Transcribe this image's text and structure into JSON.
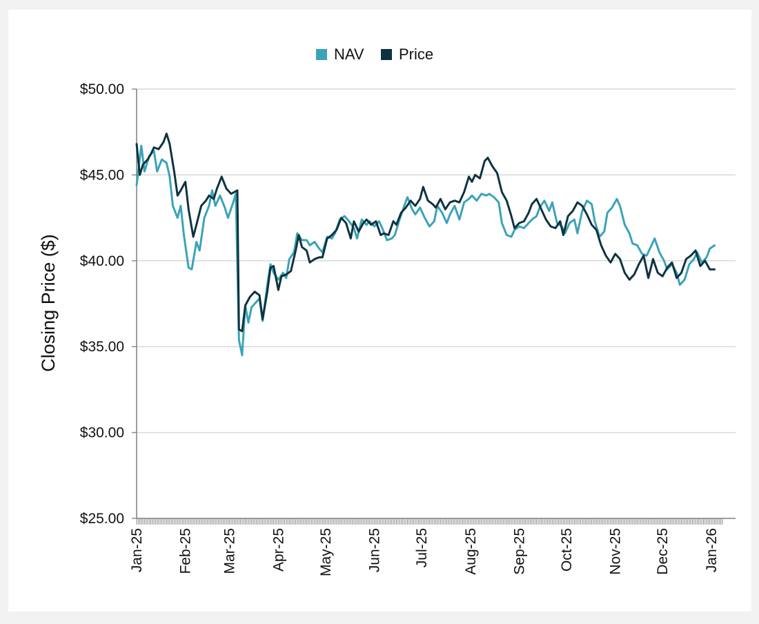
{
  "chart_data": {
    "type": "line",
    "title": "",
    "xlabel": "",
    "ylabel": "Closing Price ($)",
    "ylim": [
      25,
      50
    ],
    "yticks": [
      50,
      45,
      40,
      35,
      30,
      25
    ],
    "ytick_labels": [
      "$50.00",
      "$45.00",
      "$40.00",
      "$35.00",
      "$30.00",
      "$25.00"
    ],
    "grid": true,
    "legend_position": "top-center",
    "x_range_days": [
      0,
      376
    ],
    "x_ticks": [
      {
        "label": "Jan-25",
        "day": 0
      },
      {
        "label": "Feb-25",
        "day": 31
      },
      {
        "label": "Mar-25",
        "day": 59
      },
      {
        "label": "Apr-25",
        "day": 90
      },
      {
        "label": "May-25",
        "day": 120
      },
      {
        "label": "Jun-25",
        "day": 151
      },
      {
        "label": "Jul-25",
        "day": 181
      },
      {
        "label": "Aug-25",
        "day": 212
      },
      {
        "label": "Sep-25",
        "day": 243
      },
      {
        "label": "Oct-25",
        "day": 273
      },
      {
        "label": "Nov-25",
        "day": 304
      },
      {
        "label": "Dec-25",
        "day": 334
      },
      {
        "label": "Jan-26",
        "day": 365
      }
    ],
    "series": [
      {
        "name": "NAV",
        "color": "#3aa3b8",
        "points": [
          [
            0,
            44.4
          ],
          [
            3,
            46.7
          ],
          [
            5,
            45.2
          ],
          [
            8,
            46.1
          ],
          [
            11,
            46.4
          ],
          [
            13,
            45.2
          ],
          [
            16,
            45.9
          ],
          [
            19,
            45.7
          ],
          [
            21,
            44.9
          ],
          [
            23,
            43.2
          ],
          [
            26,
            42.5
          ],
          [
            28,
            43.2
          ],
          [
            30,
            41.5
          ],
          [
            33,
            39.6
          ],
          [
            35,
            39.5
          ],
          [
            38,
            41.1
          ],
          [
            40,
            40.6
          ],
          [
            43,
            42.5
          ],
          [
            46,
            43.2
          ],
          [
            48,
            44.1
          ],
          [
            50,
            43.2
          ],
          [
            53,
            43.8
          ],
          [
            56,
            43.1
          ],
          [
            58,
            42.5
          ],
          [
            61,
            43.3
          ],
          [
            63,
            43.9
          ],
          [
            65,
            35.4
          ],
          [
            67,
            34.5
          ],
          [
            69,
            37.4
          ],
          [
            71,
            36.4
          ],
          [
            73,
            37.3
          ],
          [
            76,
            37.6
          ],
          [
            78,
            37.8
          ],
          [
            80,
            36.5
          ],
          [
            83,
            38.6
          ],
          [
            85,
            39.8
          ],
          [
            87,
            39.3
          ],
          [
            90,
            38.9
          ],
          [
            93,
            39.3
          ],
          [
            95,
            39.0
          ],
          [
            97,
            40.1
          ],
          [
            100,
            40.5
          ],
          [
            102,
            41.6
          ],
          [
            105,
            41.2
          ],
          [
            108,
            41.2
          ],
          [
            110,
            40.9
          ],
          [
            113,
            41.1
          ],
          [
            116,
            40.7
          ],
          [
            118,
            40.5
          ],
          [
            121,
            41.4
          ],
          [
            124,
            41.3
          ],
          [
            126,
            41.6
          ],
          [
            129,
            42.4
          ],
          [
            132,
            42.6
          ],
          [
            135,
            42.3
          ],
          [
            138,
            41.9
          ],
          [
            140,
            41.3
          ],
          [
            143,
            42.4
          ],
          [
            146,
            42.1
          ],
          [
            148,
            42.3
          ],
          [
            151,
            42.0
          ],
          [
            154,
            42.3
          ],
          [
            156,
            41.9
          ],
          [
            159,
            41.2
          ],
          [
            162,
            41.3
          ],
          [
            164,
            41.5
          ],
          [
            167,
            42.4
          ],
          [
            170,
            43.2
          ],
          [
            172,
            43.7
          ],
          [
            175,
            43.0
          ],
          [
            177,
            42.7
          ],
          [
            180,
            43.1
          ],
          [
            183,
            42.5
          ],
          [
            186,
            42.0
          ],
          [
            189,
            42.3
          ],
          [
            191,
            43.2
          ],
          [
            194,
            42.8
          ],
          [
            197,
            42.2
          ],
          [
            199,
            42.7
          ],
          [
            202,
            43.2
          ],
          [
            205,
            42.4
          ],
          [
            208,
            43.4
          ],
          [
            211,
            43.6
          ],
          [
            213,
            43.8
          ],
          [
            216,
            43.5
          ],
          [
            219,
            43.9
          ],
          [
            222,
            43.8
          ],
          [
            224,
            43.9
          ],
          [
            227,
            43.7
          ],
          [
            230,
            43.4
          ],
          [
            232,
            42.2
          ],
          [
            235,
            41.5
          ],
          [
            238,
            41.4
          ],
          [
            240,
            41.8
          ],
          [
            243,
            42.0
          ],
          [
            246,
            41.9
          ],
          [
            248,
            42.1
          ],
          [
            251,
            42.4
          ],
          [
            254,
            42.6
          ],
          [
            256,
            43.1
          ],
          [
            259,
            43.5
          ],
          [
            262,
            42.9
          ],
          [
            264,
            43.4
          ],
          [
            267,
            42.2
          ],
          [
            270,
            42.0
          ],
          [
            272,
            41.6
          ],
          [
            275,
            42.2
          ],
          [
            278,
            42.4
          ],
          [
            280,
            41.6
          ],
          [
            283,
            42.9
          ],
          [
            286,
            43.5
          ],
          [
            289,
            43.3
          ],
          [
            291,
            42.3
          ],
          [
            294,
            41.4
          ],
          [
            297,
            41.7
          ],
          [
            299,
            42.8
          ],
          [
            302,
            43.1
          ],
          [
            305,
            43.6
          ],
          [
            307,
            43.2
          ],
          [
            310,
            42.1
          ],
          [
            313,
            41.6
          ],
          [
            315,
            41.0
          ],
          [
            318,
            40.9
          ],
          [
            321,
            40.4
          ],
          [
            324,
            40.3
          ],
          [
            327,
            40.9
          ],
          [
            329,
            41.3
          ],
          [
            332,
            40.5
          ],
          [
            335,
            40.0
          ],
          [
            337,
            39.5
          ],
          [
            340,
            39.8
          ],
          [
            343,
            39.3
          ],
          [
            345,
            38.6
          ],
          [
            348,
            38.9
          ],
          [
            351,
            39.8
          ],
          [
            354,
            40.1
          ],
          [
            356,
            40.5
          ],
          [
            359,
            39.9
          ],
          [
            362,
            40.2
          ],
          [
            364,
            40.7
          ],
          [
            367,
            40.9
          ]
        ]
      },
      {
        "name": "Price",
        "color": "#0d3340",
        "points": [
          [
            0,
            46.8
          ],
          [
            2,
            45.0
          ],
          [
            4,
            45.6
          ],
          [
            7,
            45.9
          ],
          [
            9,
            46.2
          ],
          [
            11,
            46.6
          ],
          [
            14,
            46.5
          ],
          [
            17,
            46.9
          ],
          [
            19,
            47.4
          ],
          [
            21,
            46.8
          ],
          [
            24,
            45.1
          ],
          [
            26,
            43.8
          ],
          [
            28,
            44.1
          ],
          [
            31,
            44.6
          ],
          [
            33,
            43.0
          ],
          [
            36,
            41.4
          ],
          [
            38,
            42.1
          ],
          [
            41,
            43.2
          ],
          [
            44,
            43.5
          ],
          [
            46,
            43.8
          ],
          [
            49,
            43.6
          ],
          [
            51,
            44.2
          ],
          [
            54,
            44.9
          ],
          [
            57,
            44.2
          ],
          [
            60,
            43.9
          ],
          [
            62,
            44.0
          ],
          [
            64,
            44.1
          ],
          [
            65,
            36.0
          ],
          [
            67,
            35.9
          ],
          [
            69,
            37.4
          ],
          [
            72,
            37.9
          ],
          [
            75,
            38.2
          ],
          [
            78,
            38.0
          ],
          [
            80,
            36.6
          ],
          [
            83,
            38.2
          ],
          [
            85,
            39.6
          ],
          [
            87,
            39.7
          ],
          [
            90,
            38.3
          ],
          [
            92,
            39.1
          ],
          [
            95,
            39.2
          ],
          [
            98,
            39.4
          ],
          [
            101,
            40.6
          ],
          [
            103,
            41.5
          ],
          [
            105,
            40.8
          ],
          [
            108,
            40.6
          ],
          [
            110,
            39.9
          ],
          [
            113,
            40.1
          ],
          [
            116,
            40.2
          ],
          [
            118,
            40.2
          ],
          [
            121,
            41.3
          ],
          [
            124,
            41.5
          ],
          [
            127,
            41.8
          ],
          [
            130,
            42.5
          ],
          [
            133,
            42.2
          ],
          [
            136,
            41.3
          ],
          [
            138,
            42.3
          ],
          [
            141,
            41.7
          ],
          [
            144,
            42.2
          ],
          [
            146,
            42.4
          ],
          [
            149,
            42.1
          ],
          [
            152,
            42.3
          ],
          [
            155,
            41.5
          ],
          [
            157,
            41.6
          ],
          [
            160,
            41.5
          ],
          [
            163,
            42.3
          ],
          [
            165,
            42.1
          ],
          [
            168,
            42.8
          ],
          [
            171,
            43.1
          ],
          [
            174,
            43.5
          ],
          [
            177,
            43.2
          ],
          [
            180,
            43.6
          ],
          [
            182,
            44.3
          ],
          [
            185,
            43.5
          ],
          [
            188,
            43.3
          ],
          [
            190,
            43.1
          ],
          [
            193,
            43.6
          ],
          [
            196,
            43.0
          ],
          [
            199,
            43.4
          ],
          [
            202,
            43.5
          ],
          [
            205,
            43.4
          ],
          [
            208,
            44.0
          ],
          [
            211,
            44.9
          ],
          [
            213,
            44.6
          ],
          [
            215,
            45.0
          ],
          [
            218,
            44.8
          ],
          [
            221,
            45.8
          ],
          [
            223,
            46.0
          ],
          [
            226,
            45.5
          ],
          [
            229,
            45.1
          ],
          [
            232,
            44.0
          ],
          [
            235,
            43.5
          ],
          [
            238,
            42.6
          ],
          [
            240,
            41.9
          ],
          [
            243,
            42.2
          ],
          [
            246,
            42.3
          ],
          [
            249,
            42.8
          ],
          [
            251,
            43.3
          ],
          [
            254,
            43.6
          ],
          [
            257,
            43.0
          ],
          [
            260,
            42.4
          ],
          [
            263,
            42.0
          ],
          [
            266,
            41.9
          ],
          [
            269,
            42.3
          ],
          [
            271,
            41.5
          ],
          [
            274,
            42.6
          ],
          [
            277,
            42.9
          ],
          [
            280,
            43.4
          ],
          [
            283,
            43.2
          ],
          [
            286,
            42.7
          ],
          [
            289,
            42.1
          ],
          [
            292,
            41.8
          ],
          [
            295,
            40.9
          ],
          [
            298,
            40.3
          ],
          [
            301,
            39.9
          ],
          [
            304,
            40.4
          ],
          [
            307,
            40.1
          ],
          [
            310,
            39.3
          ],
          [
            313,
            38.9
          ],
          [
            316,
            39.2
          ],
          [
            319,
            39.8
          ],
          [
            322,
            40.3
          ],
          [
            325,
            39.0
          ],
          [
            328,
            40.1
          ],
          [
            331,
            39.3
          ],
          [
            334,
            39.1
          ],
          [
            337,
            39.6
          ],
          [
            340,
            39.9
          ],
          [
            343,
            39.0
          ],
          [
            346,
            39.3
          ],
          [
            349,
            40.1
          ],
          [
            352,
            40.3
          ],
          [
            355,
            40.6
          ],
          [
            358,
            39.7
          ],
          [
            361,
            40.0
          ],
          [
            364,
            39.5
          ],
          [
            367,
            39.5
          ]
        ]
      }
    ]
  }
}
